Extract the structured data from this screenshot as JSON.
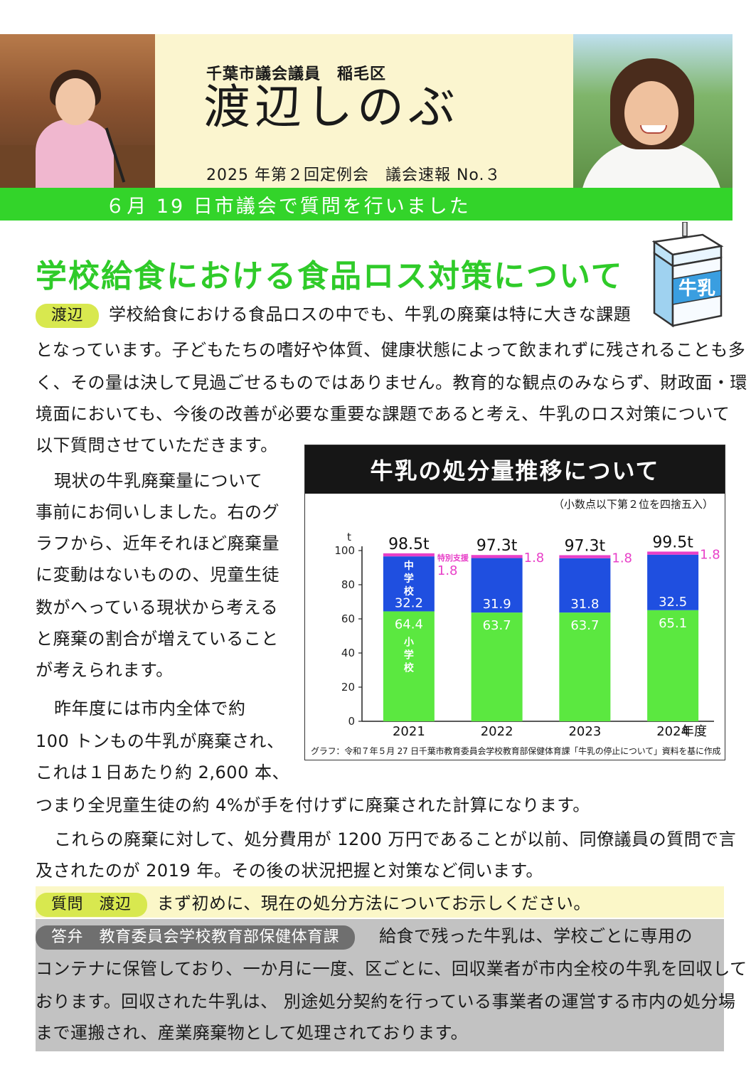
{
  "header": {
    "role": "千葉市議会議員　稲毛区",
    "name": "渡辺しのぶ",
    "issue": "2025 年第２回定例会　議会速報 No.３"
  },
  "banner": "６月 19 日市議会で質問を行いました",
  "carton_label": "牛乳",
  "section_title": "学校給食における食品ロス対策について",
  "speaker_pill": "渡辺",
  "intro": {
    "line1": "学校給食における食品ロスの中でも、牛乳の廃棄は特に大きな課題",
    "line2": "となっています。子どもたちの嗜好や体質、健康状態によって飲まれずに残されることも多",
    "line3": "く、その量は決して見過ごせるものではありません。教育的な観点のみならず、財政面・環",
    "line4": "境面においても、今後の改善が必要な重要な課題であると考え、牛乳のロス対策について",
    "line5": "以下質問させていただきます。"
  },
  "para2": {
    "l1": "現状の牛乳廃棄量について",
    "l2": "事前にお伺いしました。右のグ",
    "l3": "ラフから、近年それほど廃棄量",
    "l4": "に変動はないものの、児童生徒",
    "l5": "数がへっている現状から考える",
    "l6": "と廃棄の割合が増えていること",
    "l7": "が考えられます。"
  },
  "para3": {
    "l1": "昨年度には市内全体で約",
    "l2": "100 トンもの牛乳が廃棄され、",
    "l3": "これは１日あたり約 2,600 本、",
    "l4": "つまり全児童生徒の約 4%が手を付けずに廃棄された計算になります。"
  },
  "para4": {
    "l1": "これらの廃棄に対して、処分費用が 1200 万円であることが以前、同僚議員の質問で言",
    "l2": "及されたのが 2019 年。その後の状況把握と対策など伺います。"
  },
  "question": {
    "pill": "質問　渡辺",
    "text": "まず初めに、現在の処分方法についてお示しください。"
  },
  "answer": {
    "pill": "答弁　教育委員会学校教育部保健体育課",
    "l1": "給食で残った牛乳は、学校ごとに専用の",
    "l2": "コンテナに保管しており、一か月に一度、区ごとに、回収業者が市内全校の牛乳を回収して",
    "l3": "おります。回収された牛乳は、 別途処分契約を行っている事業者の運営する市内の処分場",
    "l4": "まで運搬され、産業廃棄物として処理されております。"
  },
  "chart": {
    "title": "牛乳の処分量推移について",
    "note": "（小数点以下第２位を四捨五入）",
    "caption": "グラフ：令和７年５月 27 日千葉市教育委員会学校教育部保健体育課「牛乳の停止について」資料を基に作成"
  },
  "chart_data": {
    "type": "bar",
    "stacked": true,
    "categories": [
      "2021",
      "2022",
      "2023",
      "2024"
    ],
    "x_unit": "年度",
    "y_unit": "t",
    "ylim": [
      0,
      100
    ],
    "yticks": [
      0,
      20,
      40,
      60,
      80,
      100
    ],
    "totals": [
      "98.5t",
      "97.3t",
      "97.3t",
      "99.5t"
    ],
    "series": [
      {
        "name": "小学校",
        "values": [
          64.4,
          63.7,
          63.7,
          65.1
        ],
        "color": "#5be840"
      },
      {
        "name": "中学校",
        "values": [
          32.2,
          31.9,
          31.8,
          32.5
        ],
        "color": "#1f4fe0"
      },
      {
        "name": "特別支援",
        "values": [
          1.8,
          1.8,
          1.8,
          1.8
        ],
        "color": "#e83fc8"
      }
    ],
    "colors": {
      "label_on_bar": "#ffffff",
      "special_label": "#e83fc8"
    }
  }
}
